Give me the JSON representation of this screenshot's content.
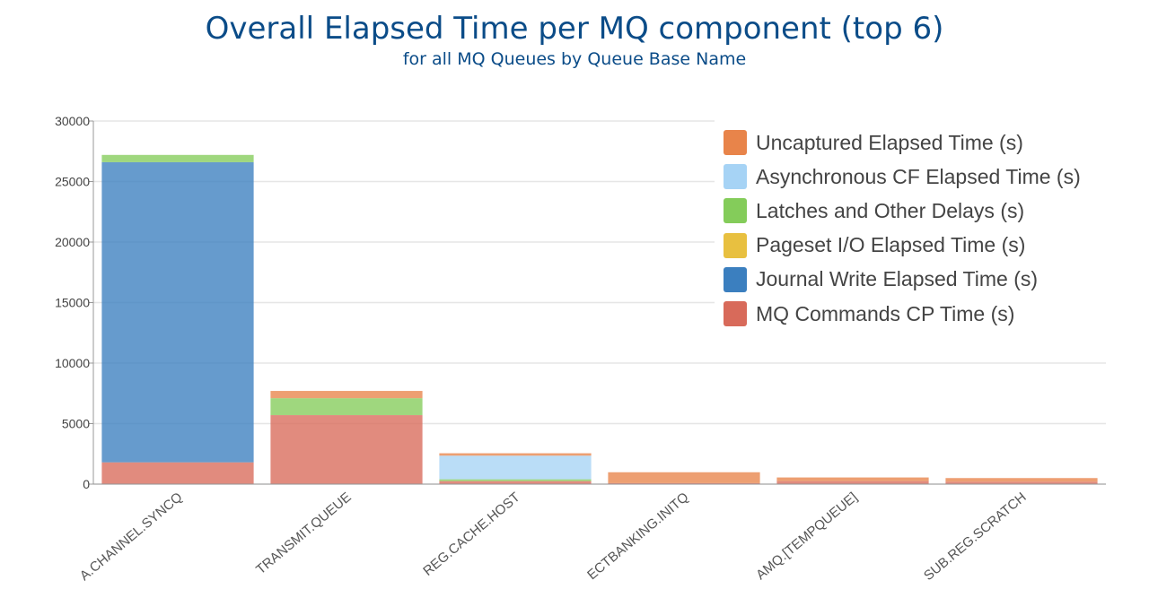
{
  "chart_data": {
    "type": "bar",
    "stacked": true,
    "title": "Overall Elapsed Time per MQ component (top 6)",
    "subtitle": "for all MQ Queues by Queue Base Name",
    "categories": [
      "A.CHANNEL.SYNCQ",
      "TRANSMIT.QUEUE",
      "REG.CACHE.HOST",
      "ECTBANKING.INITQ",
      "AMQ.[TEMPQUEUE]",
      "SUB.REG.SCRATCH"
    ],
    "ylim": [
      0,
      30000
    ],
    "yticks": [
      0,
      5000,
      10000,
      15000,
      20000,
      25000,
      30000
    ],
    "grid": true,
    "legend_position": "top-right",
    "series": [
      {
        "name": "MQ Commands CP Time (s)",
        "color": "#d86a5a",
        "values": [
          1800,
          5700,
          250,
          80,
          250,
          200
        ]
      },
      {
        "name": "Journal Write Elapsed Time (s)",
        "color": "#3b7fbf",
        "values": [
          24800,
          0,
          0,
          0,
          0,
          0
        ]
      },
      {
        "name": "Pageset I/O Elapsed Time (s)",
        "color": "#e8c040",
        "values": [
          0,
          0,
          0,
          0,
          0,
          0
        ]
      },
      {
        "name": "Latches and Other Delays (s)",
        "color": "#84cc5a",
        "values": [
          600,
          1400,
          150,
          0,
          0,
          0
        ]
      },
      {
        "name": "Asynchronous CF Elapsed Time (s)",
        "color": "#a6d3f5",
        "values": [
          0,
          0,
          1950,
          0,
          0,
          0
        ]
      },
      {
        "name": "Uncaptured Elapsed Time (s)",
        "color": "#e8844a",
        "values": [
          0,
          600,
          200,
          900,
          300,
          300
        ]
      }
    ],
    "legend_order": [
      "Uncaptured Elapsed Time (s)",
      "Asynchronous CF Elapsed Time (s)",
      "Latches and Other Delays (s)",
      "Pageset I/O Elapsed Time (s)",
      "Journal Write Elapsed Time (s)",
      "MQ Commands CP Time (s)"
    ]
  }
}
